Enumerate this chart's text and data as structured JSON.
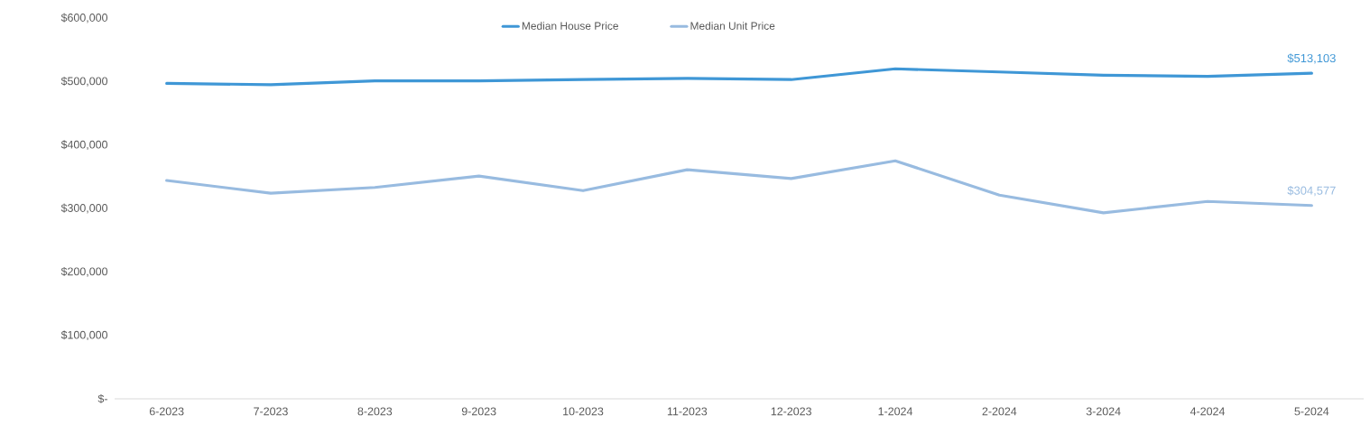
{
  "chart_data": {
    "type": "line",
    "categories": [
      "6-2023",
      "7-2023",
      "8-2023",
      "9-2023",
      "10-2023",
      "11-2023",
      "12-2023",
      "1-2024",
      "2-2024",
      "3-2024",
      "4-2024",
      "5-2024"
    ],
    "series": [
      {
        "name": "Median House Price",
        "color": "#3f97d6",
        "values": [
          497000,
          495000,
          501000,
          501000,
          503000,
          505000,
          503000,
          520000,
          515000,
          510000,
          508000,
          513103
        ],
        "value_labels": [
          null,
          null,
          null,
          null,
          null,
          null,
          null,
          null,
          null,
          null,
          null,
          "$513,103"
        ]
      },
      {
        "name": "Median Unit Price",
        "color": "#98bbe0",
        "values": [
          344000,
          324000,
          333000,
          351000,
          328000,
          361000,
          347000,
          375000,
          321000,
          293000,
          311000,
          304577
        ],
        "value_labels": [
          null,
          null,
          null,
          null,
          null,
          null,
          null,
          null,
          null,
          null,
          null,
          "$304,577"
        ]
      }
    ],
    "ylim": [
      0,
      600000
    ],
    "yticks": [
      {
        "value": 0,
        "label": "$-"
      },
      {
        "value": 100000,
        "label": "$100,000"
      },
      {
        "value": 200000,
        "label": "$200,000"
      },
      {
        "value": 300000,
        "label": "$300,000"
      },
      {
        "value": 400000,
        "label": "$400,000"
      },
      {
        "value": 500000,
        "label": "$500,000"
      },
      {
        "value": 600000,
        "label": "$600,000"
      }
    ],
    "grid": false,
    "legend": "top",
    "marker": "none",
    "line_style": "solid"
  }
}
